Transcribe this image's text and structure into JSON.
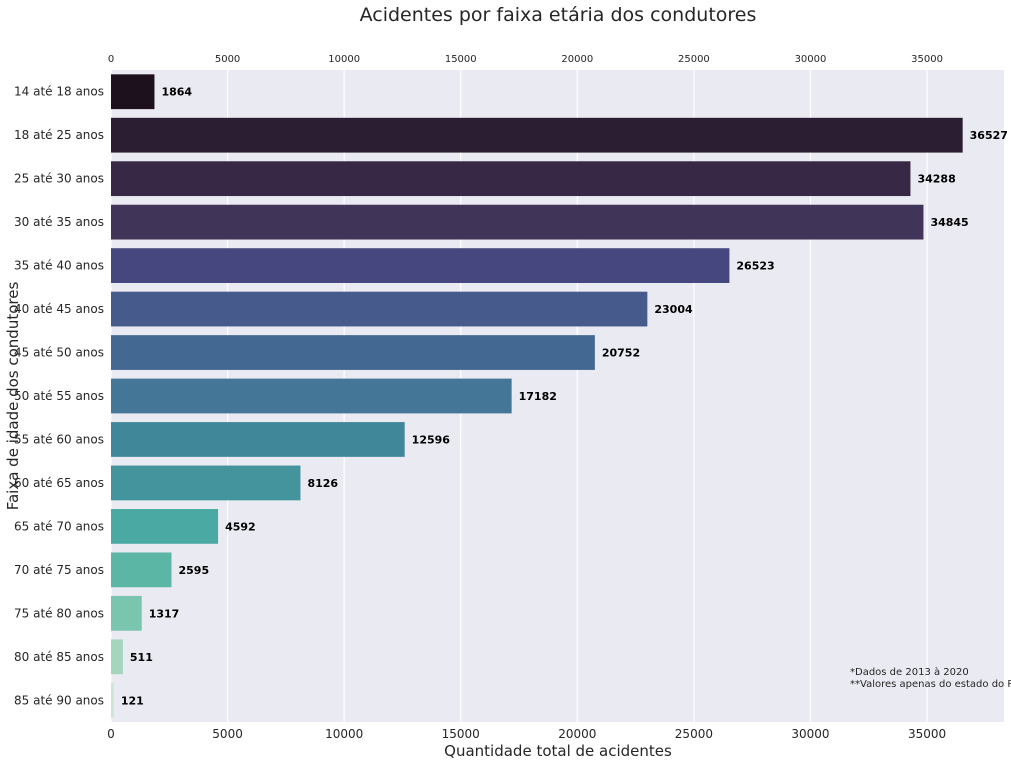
{
  "chart_data": {
    "type": "bar",
    "orientation": "horizontal",
    "title": "Acidentes por faixa etária dos condutores",
    "xlabel": "Quantidade total de acidentes",
    "ylabel": "Faixa de idade dos condutores",
    "xlim": [
      0,
      38300
    ],
    "x_ticks": [
      0,
      5000,
      10000,
      15000,
      20000,
      25000,
      30000,
      35000
    ],
    "x_tick_labels": [
      "0",
      "5000",
      "10000",
      "15000",
      "20000",
      "25000",
      "30000",
      "35000"
    ],
    "grid": true,
    "categories": [
      "14 até 18 anos",
      "18 até 25 anos",
      "25 até 30 anos",
      "30 até 35 anos",
      "35 até 40 anos",
      "40 até 45 anos",
      "45 até 50 anos",
      "50 até 55 anos",
      "55 até 60 anos",
      "60 até 65 anos",
      "65 até 70 anos",
      "70 até 75 anos",
      "75 até 80 anos",
      "80 até 85 anos",
      "85 até 90 anos"
    ],
    "values": [
      1864,
      36527,
      34288,
      34845,
      26523,
      23004,
      20752,
      17182,
      12596,
      8126,
      4592,
      2595,
      1317,
      511,
      121
    ],
    "data_labels": [
      "1864",
      "36527",
      "34288",
      "34845",
      "26523",
      "23004",
      "20752",
      "17182",
      "12596",
      "8126",
      "4592",
      "2595",
      "1317",
      "511",
      "121"
    ],
    "bar_colors": [
      "#1c111c",
      "#2c1e32",
      "#372946",
      "#403559",
      "#46477f",
      "#475a8c",
      "#436892",
      "#437697",
      "#41879a",
      "#44949e",
      "#4aa9a3",
      "#5bb6a5",
      "#7ac5ae",
      "#a5d5bd",
      "#cde5d4"
    ],
    "annotations": [
      "*Dados de 2013 à 2020",
      "**Valores apenas do estado do RS"
    ]
  },
  "style": {
    "plot_bg": "#eaeaf2",
    "grid_color": "#ffffff",
    "text_color": "#262626"
  }
}
